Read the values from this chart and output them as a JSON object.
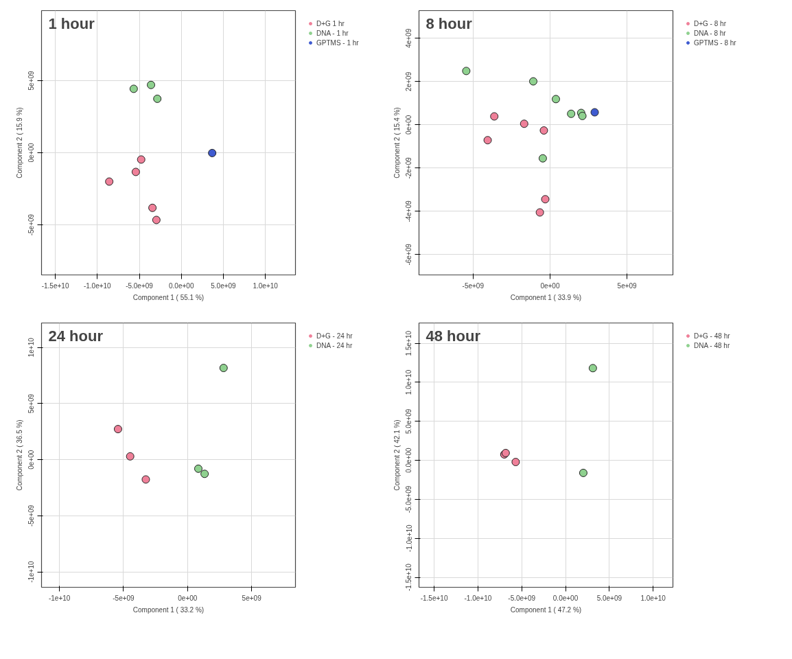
{
  "chart_data": [
    {
      "type": "scatter",
      "title": "1 hour",
      "xlabel": "Component 1 ( 55.1 %)",
      "ylabel": "Component 2 ( 15.9 %)",
      "grid": true,
      "legend": "right",
      "marker": "circle",
      "xlim": [
        -16640000000.0,
        13580000000.0
      ],
      "ylim": [
        -8470000000.0,
        9850000000.0
      ],
      "xticks": [
        {
          "value": -15000000000.0,
          "label": "-1.5e+10"
        },
        {
          "value": -10000000000.0,
          "label": "-1.0e+10"
        },
        {
          "value": -5000000000.0,
          "label": "-5.0e+09"
        },
        {
          "value": 0,
          "label": "0.0e+00"
        },
        {
          "value": 5000000000.0,
          "label": "5.0e+09"
        },
        {
          "value": 10000000000.0,
          "label": "1.0e+10"
        }
      ],
      "yticks": [
        {
          "value": -5000000000.0,
          "label": "-5e+09"
        },
        {
          "value": 0,
          "label": "0e+00"
        },
        {
          "value": 5000000000.0,
          "label": "5e+09"
        }
      ],
      "series": [
        {
          "name": "D+G 1 hr",
          "color": "#ef8099",
          "x": [
            -4780000000.0,
            -5420000000.0,
            -8580000000.0,
            -3440000000.0,
            -2970000000.0
          ],
          "values": [
            -470000000.0,
            -1330000000.0,
            -2000000000.0,
            -3820000000.0,
            -4660000000.0
          ]
        },
        {
          "name": "DNA - 1 hr",
          "color": "#8fd18f",
          "x": [
            -5670000000.0,
            -3610000000.0,
            -2860000000.0
          ],
          "values": [
            4430000000.0,
            4700000000.0,
            3740000000.0
          ]
        },
        {
          "name": "GPTMS - 1 hr",
          "color": "#3f5bd0",
          "x": [
            3670000000.0
          ],
          "values": [
            -20000000.0
          ]
        }
      ]
    },
    {
      "type": "scatter",
      "title": "8 hour",
      "xlabel": "Component 1 ( 33.9 %)",
      "ylabel": "Component 2 ( 15.4 %)",
      "grid": true,
      "legend": "right",
      "marker": "circle",
      "xlim": [
        -8510000000.0,
        7980000000.0
      ],
      "ylim": [
        -6940000000.0,
        5280000000.0
      ],
      "xticks": [
        {
          "value": -5000000000.0,
          "label": "-5e+09"
        },
        {
          "value": 0,
          "label": "0e+00"
        },
        {
          "value": 5000000000.0,
          "label": "5e+09"
        }
      ],
      "yticks": [
        {
          "value": -6000000000.0,
          "label": "-6e+09"
        },
        {
          "value": -4000000000.0,
          "label": "-4e+09"
        },
        {
          "value": -2000000000.0,
          "label": "-2e+09"
        },
        {
          "value": 0,
          "label": "0e+00"
        },
        {
          "value": 2000000000.0,
          "label": "2e+09"
        },
        {
          "value": 4000000000.0,
          "label": "4e+09"
        }
      ],
      "series": [
        {
          "name": "D+G - 8 hr",
          "color": "#ef8099",
          "x": [
            -3620000000.0,
            -1680000000.0,
            -400000000.0,
            -4050000000.0,
            -310000000.0,
            -660000000.0
          ],
          "values": [
            390000000.0,
            50000000.0,
            -260000000.0,
            -710000000.0,
            -3440000000.0,
            -4050000000.0
          ]
        },
        {
          "name": "DNA - 8 hr",
          "color": "#8fd18f",
          "x": [
            -5440000000.0,
            -1090000000.0,
            380000000.0,
            1370000000.0,
            2020000000.0,
            2100000000.0,
            -470000000.0
          ],
          "values": [
            2490000000.0,
            2010000000.0,
            1190000000.0,
            510000000.0,
            550000000.0,
            410000000.0,
            -1550000000.0
          ]
        },
        {
          "name": "GPTMS - 8 hr",
          "color": "#3f5bd0",
          "x": [
            2900000000.0
          ],
          "values": [
            580000000.0
          ]
        }
      ]
    },
    {
      "type": "scatter",
      "title": "24 hour",
      "xlabel": "Component 1 ( 33.2 %)",
      "ylabel": "Component 2 ( 36.5 %)",
      "grid": true,
      "legend": "right",
      "marker": "circle",
      "xlim": [
        -11400000000.0,
        8420000000.0
      ],
      "ylim": [
        -11370000000.0,
        12190000000.0
      ],
      "xticks": [
        {
          "value": -10000000000.0,
          "label": "-1e+10"
        },
        {
          "value": -5000000000.0,
          "label": "-5e+09"
        },
        {
          "value": 0,
          "label": "0e+00"
        },
        {
          "value": 5000000000.0,
          "label": "5e+09"
        }
      ],
      "yticks": [
        {
          "value": -10000000000.0,
          "label": "-1e+10"
        },
        {
          "value": -5000000000.0,
          "label": "-5e+09"
        },
        {
          "value": 0,
          "label": "0e+00"
        },
        {
          "value": 5000000000.0,
          "label": "5e+09"
        },
        {
          "value": 10000000000.0,
          "label": "1e+10"
        }
      ],
      "series": [
        {
          "name": "D+G - 24 hr",
          "color": "#ef8099",
          "x": [
            -5430000000.0,
            -4480000000.0,
            -3260000000.0
          ],
          "values": [
            2730000000.0,
            300000000.0,
            -1760000000.0
          ]
        },
        {
          "name": "DNA - 24 hr",
          "color": "#8fd18f",
          "x": [
            2810000000.0,
            840000000.0,
            1330000000.0
          ],
          "values": [
            8180000000.0,
            -800000000.0,
            -1260000000.0
          ]
        }
      ]
    },
    {
      "type": "scatter",
      "title": "48 hour",
      "xlabel": "Component 1 ( 47.2 %)",
      "ylabel": "Component 2 ( 42.1 %)",
      "grid": true,
      "legend": "right",
      "marker": "circle",
      "xlim": [
        -16730000000.0,
        12260000000.0
      ],
      "ylim": [
        -16270000000.0,
        17610000000.0
      ],
      "xticks": [
        {
          "value": -15000000000.0,
          "label": "-1.5e+10"
        },
        {
          "value": -10000000000.0,
          "label": "-1.0e+10"
        },
        {
          "value": -5000000000.0,
          "label": "-5.0e+09"
        },
        {
          "value": 0,
          "label": "0.0e+00"
        },
        {
          "value": 5000000000.0,
          "label": "5.0e+09"
        },
        {
          "value": 10000000000.0,
          "label": "1.0e+10"
        }
      ],
      "yticks": [
        {
          "value": -15000000000.0,
          "label": "-1.5e+10"
        },
        {
          "value": -10000000000.0,
          "label": "-1.0e+10"
        },
        {
          "value": -5000000000.0,
          "label": "-5.0e+09"
        },
        {
          "value": 0,
          "label": "0.0e+00"
        },
        {
          "value": 5000000000.0,
          "label": "5.0e+09"
        },
        {
          "value": 10000000000.0,
          "label": "1.0e+10"
        },
        {
          "value": 15000000000.0,
          "label": "1.5e+10"
        }
      ],
      "series": [
        {
          "name": "D+G - 48 hr",
          "color": "#ef8099",
          "x": [
            -6990000000.0,
            -6830000000.0,
            -5690000000.0
          ],
          "values": [
            760000000.0,
            940000000.0,
            -210000000.0
          ]
        },
        {
          "name": "DNA - 48 hr",
          "color": "#8fd18f",
          "x": [
            3120000000.0,
            2030000000.0
          ],
          "values": [
            11820000000.0,
            -1610000000.0
          ]
        }
      ]
    }
  ]
}
